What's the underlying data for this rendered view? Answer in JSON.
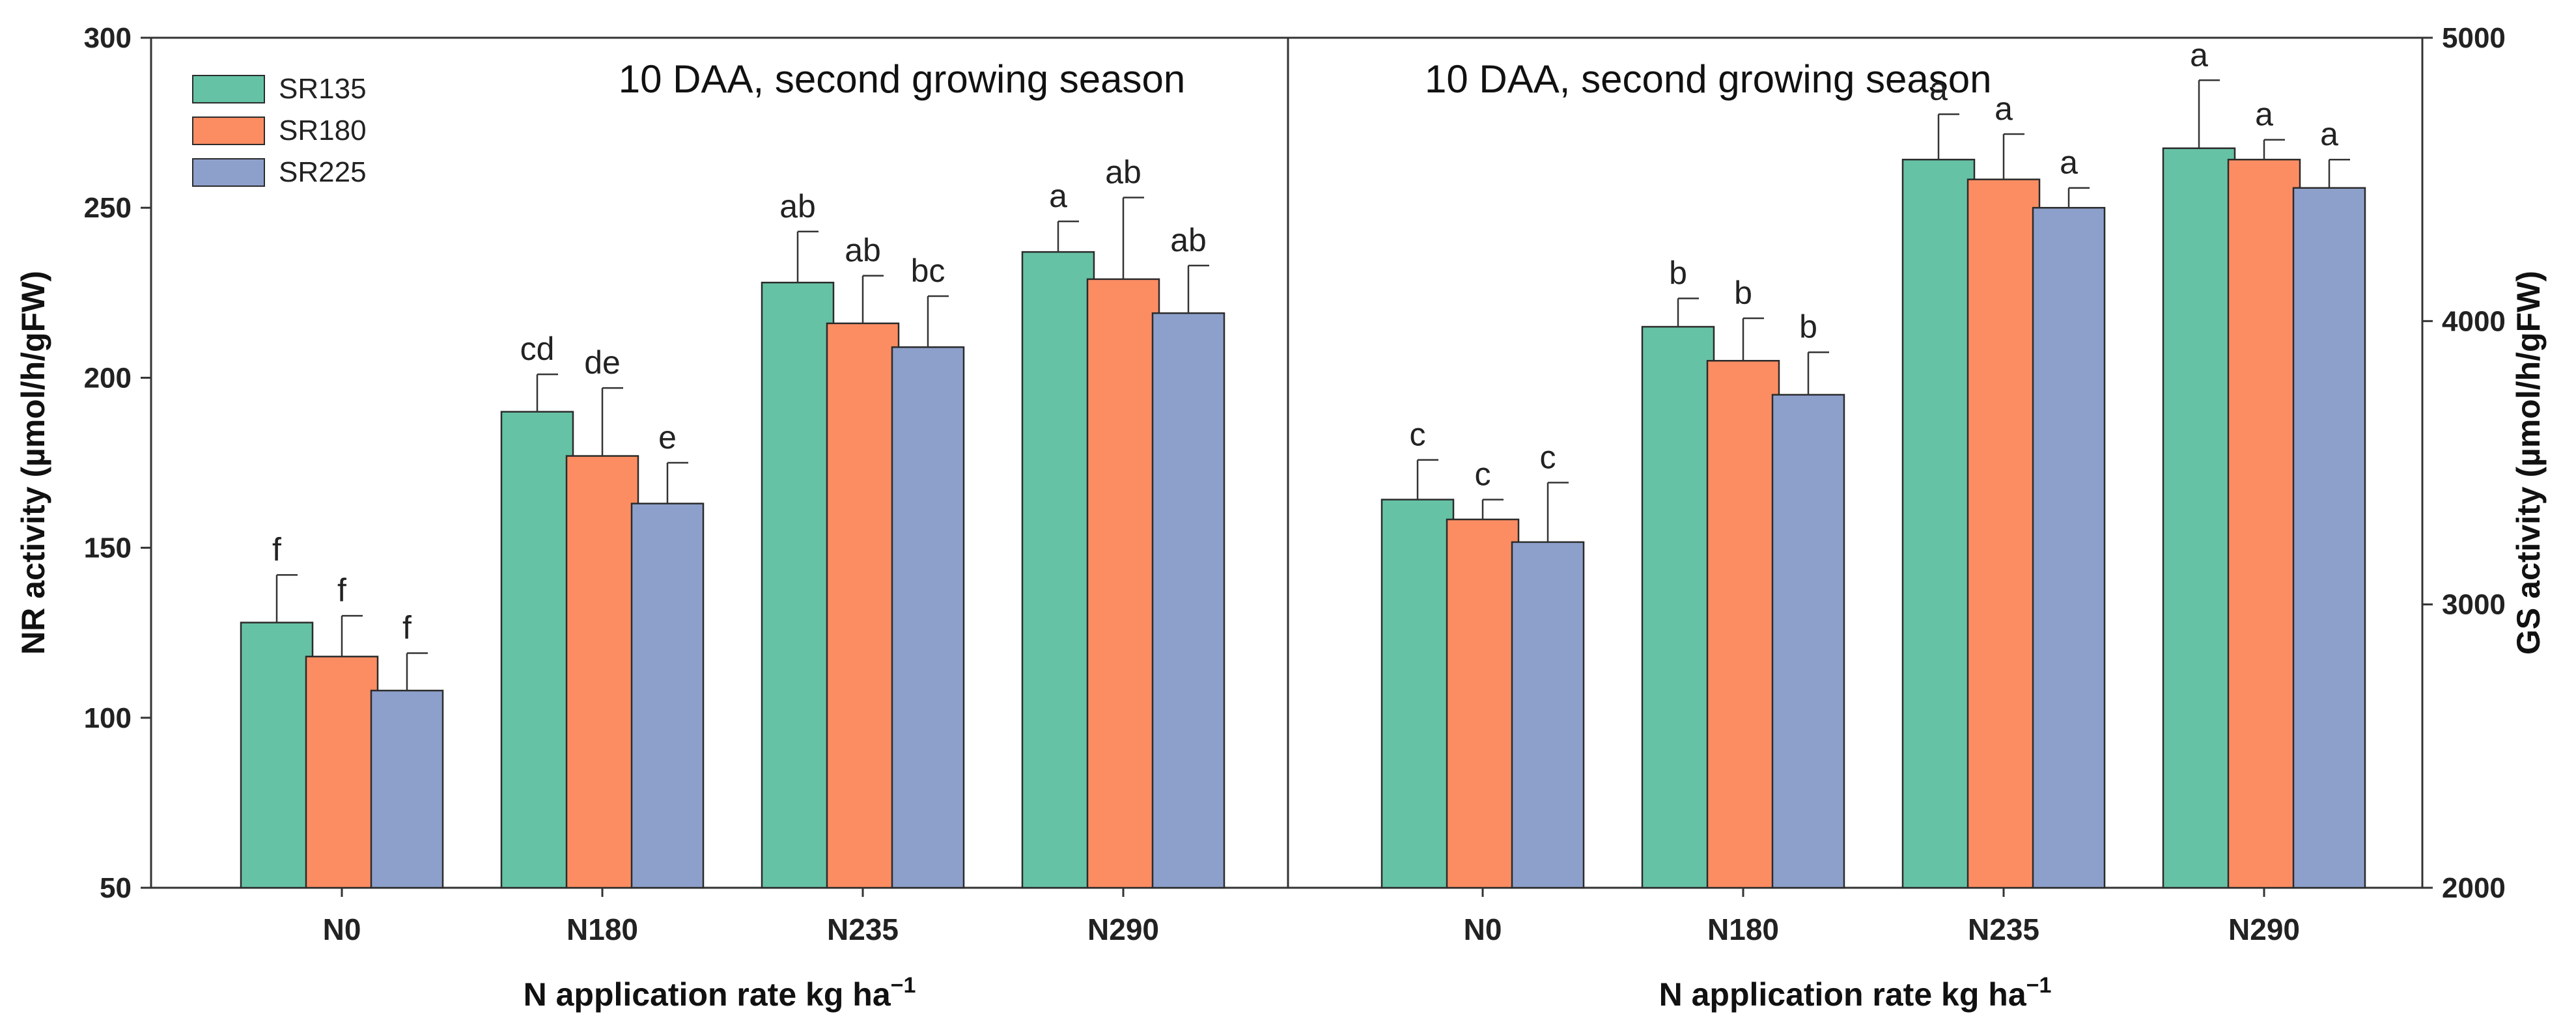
{
  "chart_data": [
    {
      "type": "bar",
      "title": "10 DAA, second growing season",
      "xlabel": "N application rate kg ha",
      "xlabel_sup": "−1",
      "ylabel": "NR activity (µmol/h/gFW)",
      "ylim": [
        50,
        300
      ],
      "yticks": [
        50,
        100,
        150,
        200,
        250,
        300
      ],
      "categories": [
        "N0",
        "N180",
        "N235",
        "N290"
      ],
      "series": [
        {
          "name": "SR135",
          "color": "#66c2a5",
          "values": [
            128,
            190,
            228,
            237
          ],
          "errors": [
            14,
            11,
            15,
            9
          ],
          "letters": [
            "f",
            "cd",
            "ab",
            "a"
          ]
        },
        {
          "name": "SR180",
          "color": "#fc8d62",
          "values": [
            118,
            177,
            216,
            229
          ],
          "errors": [
            12,
            20,
            14,
            24
          ],
          "letters": [
            "f",
            "de",
            "ab",
            "ab"
          ]
        },
        {
          "name": "SR225",
          "color": "#8da0cb",
          "values": [
            108,
            163,
            209,
            219
          ],
          "errors": [
            11,
            12,
            15,
            14
          ],
          "letters": [
            "f",
            "e",
            "bc",
            "ab"
          ]
        }
      ],
      "legend": {
        "position": "top-left",
        "entries": [
          "SR135",
          "SR180",
          "SR225"
        ]
      }
    },
    {
      "type": "bar",
      "title": "10 DAA, second growing season",
      "xlabel": "N application rate kg ha",
      "xlabel_sup": "−1",
      "ylabel": "GS activity (µmol/h/gFW)",
      "ylim": [
        2000,
        5000
      ],
      "yticks": [
        2000,
        3000,
        4000,
        5000
      ],
      "axis_side": "right",
      "categories": [
        "N0",
        "N180",
        "N235",
        "N290"
      ],
      "series": [
        {
          "name": "SR135",
          "color": "#66c2a5",
          "values": [
            3370,
            3980,
            4570,
            4610
          ],
          "errors": [
            140,
            100,
            160,
            240
          ],
          "letters": [
            "c",
            "b",
            "a",
            "a"
          ]
        },
        {
          "name": "SR180",
          "color": "#fc8d62",
          "values": [
            3300,
            3860,
            4500,
            4570
          ],
          "errors": [
            70,
            150,
            160,
            70
          ],
          "letters": [
            "c",
            "b",
            "a",
            "a"
          ]
        },
        {
          "name": "SR225",
          "color": "#8da0cb",
          "values": [
            3220,
            3740,
            4400,
            4470
          ],
          "errors": [
            210,
            150,
            70,
            100
          ],
          "letters": [
            "c",
            "b",
            "a",
            "a"
          ]
        }
      ]
    }
  ]
}
